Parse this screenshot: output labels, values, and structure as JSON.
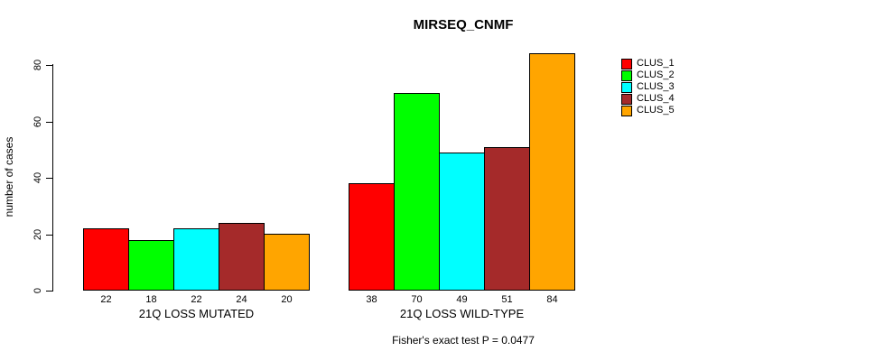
{
  "chart_data": {
    "type": "bar",
    "title": "MIRSEQ_CNMF",
    "xlabel": "",
    "ylabel": "number of cases",
    "ylim": [
      0,
      80
    ],
    "yticks": [
      0,
      20,
      40,
      60,
      80
    ],
    "categories": [
      "21Q LOSS MUTATED",
      "21Q LOSS WILD-TYPE"
    ],
    "series": [
      {
        "name": "CLUS_1",
        "color": "#FF0000",
        "values": [
          22,
          38
        ]
      },
      {
        "name": "CLUS_2",
        "color": "#00FF00",
        "values": [
          18,
          70
        ]
      },
      {
        "name": "CLUS_3",
        "color": "#00FFFF",
        "values": [
          22,
          49
        ]
      },
      {
        "name": "CLUS_4",
        "color": "#A52A2A",
        "values": [
          24,
          51
        ]
      },
      {
        "name": "CLUS_5",
        "color": "#FFA500",
        "values": [
          20,
          84
        ]
      }
    ],
    "bar_value_labels": true,
    "legend_position": "right",
    "grid": false,
    "annotation": "Fisher's exact test P = 0.0477"
  }
}
